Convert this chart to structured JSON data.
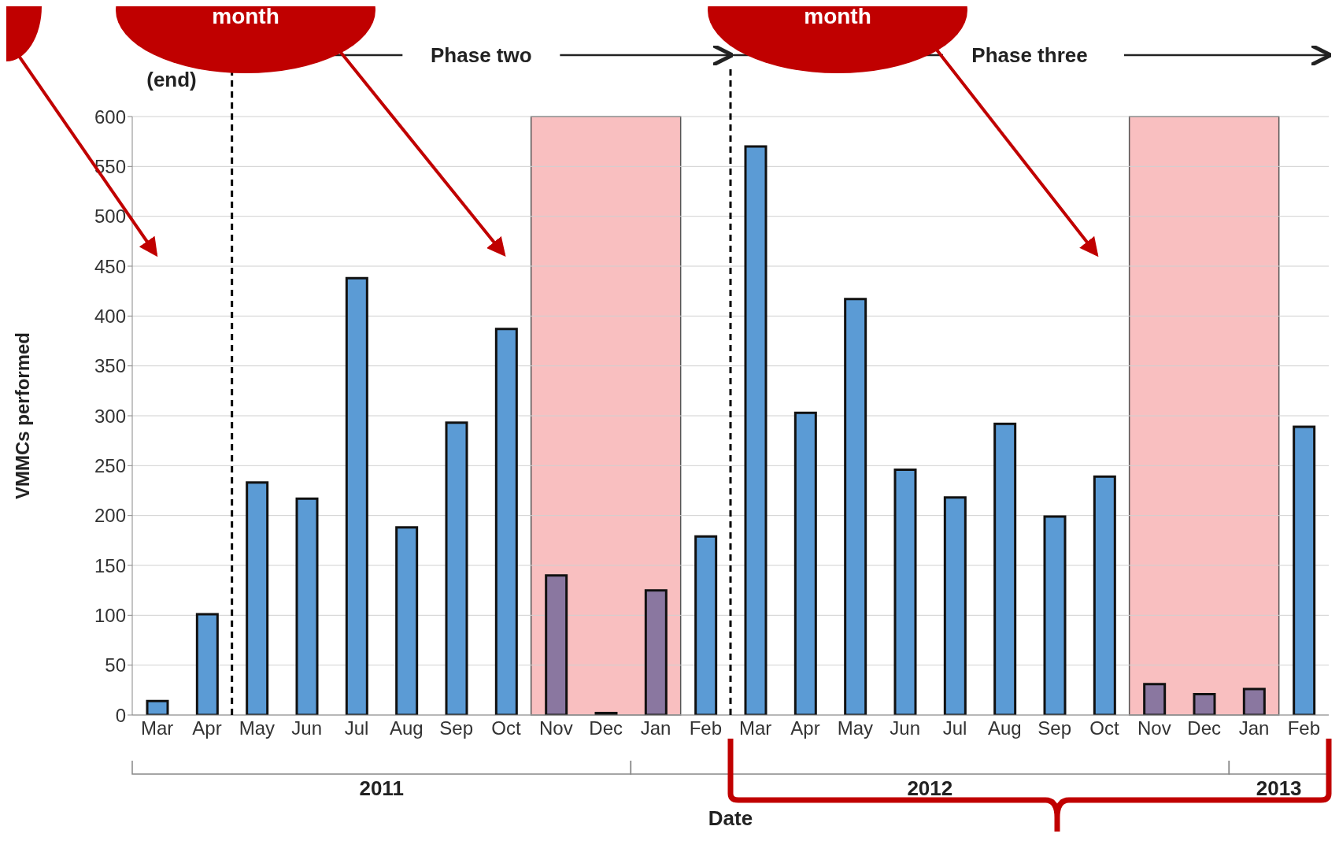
{
  "chart_data": {
    "type": "bar",
    "xlabel": "Date",
    "ylabel": "VMMCs performed",
    "categories": [
      "Mar",
      "Apr",
      "May",
      "Jun",
      "Jul",
      "Aug",
      "Sep",
      "Oct",
      "Nov",
      "Dec",
      "Jan",
      "Feb",
      "Mar",
      "Apr",
      "May",
      "Jun",
      "Jul",
      "Aug",
      "Sep",
      "Oct",
      "Nov",
      "Dec",
      "Jan",
      "Feb"
    ],
    "values": [
      14,
      101,
      233,
      217,
      438,
      188,
      293,
      387,
      140,
      2,
      125,
      179,
      570,
      303,
      417,
      246,
      218,
      292,
      199,
      239,
      31,
      21,
      26,
      289
    ],
    "colors": [
      "#5b9bd5",
      "#5b9bd5",
      "#5b9bd5",
      "#5b9bd5",
      "#5b9bd5",
      "#5b9bd5",
      "#5b9bd5",
      "#5b9bd5",
      "#8a77a0",
      "#8a77a0",
      "#8a77a0",
      "#5b9bd5",
      "#5b9bd5",
      "#5b9bd5",
      "#5b9bd5",
      "#5b9bd5",
      "#5b9bd5",
      "#5b9bd5",
      "#5b9bd5",
      "#5b9bd5",
      "#8a77a0",
      "#8a77a0",
      "#8a77a0",
      "#5b9bd5"
    ],
    "ylim": [
      0,
      600
    ],
    "yticks": [
      0,
      50,
      100,
      150,
      200,
      250,
      300,
      350,
      400,
      450,
      500,
      550,
      600
    ],
    "grid": "y",
    "annotations": [
      "(end)",
      "Phase two",
      "Phase three",
      "month",
      "month",
      "2011",
      "2012",
      "2013"
    ]
  }
}
